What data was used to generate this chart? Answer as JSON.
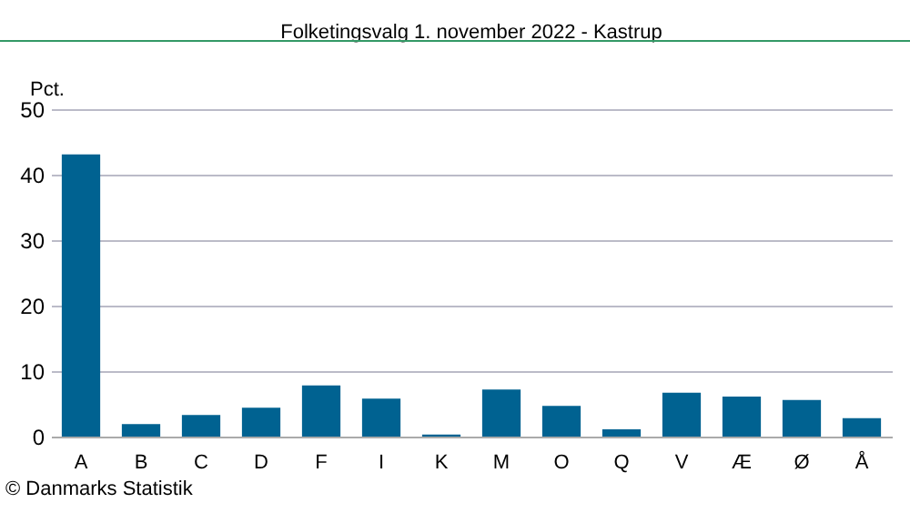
{
  "chart_data": {
    "type": "bar",
    "title": "Folketingsvalg 1. november 2022 - Kastrup",
    "ylabel": "Pct.",
    "categories": [
      "A",
      "B",
      "C",
      "D",
      "F",
      "I",
      "K",
      "M",
      "O",
      "Q",
      "V",
      "Æ",
      "Ø",
      "Å"
    ],
    "values": [
      43.1,
      1.9,
      3.3,
      4.4,
      7.8,
      5.8,
      0.3,
      7.2,
      4.7,
      1.1,
      6.7,
      6.1,
      5.6,
      2.8
    ],
    "color": "#006291",
    "ylim": [
      0,
      50
    ],
    "yticks": [
      0,
      10,
      20,
      30,
      40,
      50
    ],
    "grid": "y",
    "annotations": [
      "© Danmarks Statistik"
    ]
  }
}
